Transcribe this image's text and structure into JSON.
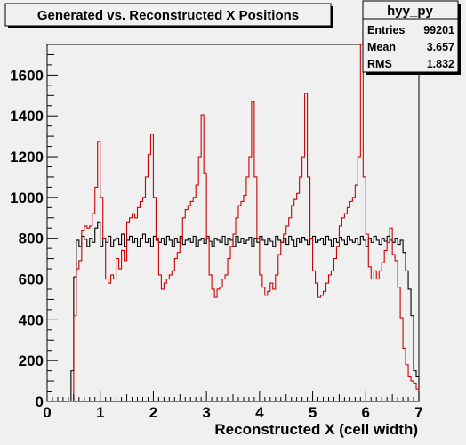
{
  "title": "Generated vs. Reconstructed X Positions",
  "stats": {
    "name": "hyy_py",
    "rows": [
      {
        "label": "Entries",
        "value": "99201"
      },
      {
        "label": "Mean",
        "value": "3.657"
      },
      {
        "label": "RMS",
        "value": "1.832"
      }
    ]
  },
  "colors": {
    "background": "#f0f0f0",
    "frame": "#000000",
    "series_reconstructed": "#000000",
    "series_generated": "#cc0000"
  },
  "chart_data": {
    "type": "histogram",
    "title": "Generated vs. Reconstructed X Positions",
    "xlabel": "Reconstructed X (cell width)",
    "ylabel": "",
    "xlim": [
      0,
      7
    ],
    "ylim": [
      0,
      1750
    ],
    "x_ticks": [
      0,
      1,
      2,
      3,
      4,
      5,
      6,
      7
    ],
    "y_ticks": [
      0,
      200,
      400,
      600,
      800,
      1000,
      1200,
      1400,
      1600
    ],
    "grid": false,
    "legend": "none",
    "series": [
      {
        "color": "black",
        "points": [
          [
            0.4,
            0
          ],
          [
            0.45,
            150
          ],
          [
            0.5,
            610
          ],
          [
            0.55,
            790
          ],
          [
            0.6,
            760
          ],
          [
            0.65,
            810
          ],
          [
            0.7,
            795
          ],
          [
            0.75,
            760
          ],
          [
            0.8,
            800
          ],
          [
            0.85,
            780
          ],
          [
            0.9,
            850
          ],
          [
            0.95,
            880
          ],
          [
            1.0,
            760
          ],
          [
            1.05,
            800
          ],
          [
            1.1,
            780
          ],
          [
            1.15,
            810
          ],
          [
            1.2,
            760
          ],
          [
            1.25,
            790
          ],
          [
            1.3,
            800
          ],
          [
            1.35,
            770
          ],
          [
            1.4,
            820
          ],
          [
            1.45,
            760
          ],
          [
            1.5,
            790
          ],
          [
            1.55,
            810
          ],
          [
            1.6,
            780
          ],
          [
            1.65,
            800
          ],
          [
            1.7,
            760
          ],
          [
            1.75,
            800
          ],
          [
            1.8,
            820
          ],
          [
            1.85,
            780
          ],
          [
            1.9,
            800
          ],
          [
            1.95,
            760
          ],
          [
            2.0,
            810
          ],
          [
            2.05,
            790
          ],
          [
            2.1,
            780
          ],
          [
            2.15,
            800
          ],
          [
            2.2,
            770
          ],
          [
            2.25,
            810
          ],
          [
            2.3,
            790
          ],
          [
            2.35,
            760
          ],
          [
            2.4,
            800
          ],
          [
            2.45,
            780
          ],
          [
            2.5,
            810
          ],
          [
            2.55,
            770
          ],
          [
            2.6,
            790
          ],
          [
            2.65,
            800
          ],
          [
            2.7,
            780
          ],
          [
            2.75,
            810
          ],
          [
            2.8,
            760
          ],
          [
            2.85,
            790
          ],
          [
            2.9,
            800
          ],
          [
            2.95,
            775
          ],
          [
            3.0,
            810
          ],
          [
            3.05,
            785
          ],
          [
            3.1,
            760
          ],
          [
            3.15,
            800
          ],
          [
            3.2,
            790
          ],
          [
            3.25,
            780
          ],
          [
            3.3,
            810
          ],
          [
            3.35,
            770
          ],
          [
            3.4,
            800
          ],
          [
            3.45,
            790
          ],
          [
            3.5,
            760
          ],
          [
            3.55,
            810
          ],
          [
            3.6,
            780
          ],
          [
            3.65,
            800
          ],
          [
            3.7,
            775
          ],
          [
            3.75,
            790
          ],
          [
            3.8,
            805
          ],
          [
            3.85,
            760
          ],
          [
            3.9,
            800
          ],
          [
            3.95,
            780
          ],
          [
            4.0,
            810
          ],
          [
            4.05,
            790
          ],
          [
            4.1,
            770
          ],
          [
            4.15,
            800
          ],
          [
            4.2,
            785
          ],
          [
            4.25,
            760
          ],
          [
            4.3,
            810
          ],
          [
            4.35,
            790
          ],
          [
            4.4,
            780
          ],
          [
            4.45,
            800
          ],
          [
            4.5,
            770
          ],
          [
            4.55,
            810
          ],
          [
            4.6,
            790
          ],
          [
            4.65,
            760
          ],
          [
            4.7,
            800
          ],
          [
            4.75,
            780
          ],
          [
            4.8,
            805
          ],
          [
            4.85,
            790
          ],
          [
            4.9,
            770
          ],
          [
            4.95,
            800
          ],
          [
            5.0,
            810
          ],
          [
            5.05,
            780
          ],
          [
            5.1,
            790
          ],
          [
            5.15,
            800
          ],
          [
            5.2,
            770
          ],
          [
            5.25,
            810
          ],
          [
            5.3,
            790
          ],
          [
            5.35,
            760
          ],
          [
            5.4,
            800
          ],
          [
            5.45,
            780
          ],
          [
            5.5,
            805
          ],
          [
            5.55,
            790
          ],
          [
            5.6,
            770
          ],
          [
            5.65,
            810
          ],
          [
            5.7,
            790
          ],
          [
            5.75,
            780
          ],
          [
            5.8,
            800
          ],
          [
            5.85,
            770
          ],
          [
            5.9,
            810
          ],
          [
            5.95,
            790
          ],
          [
            6.0,
            760
          ],
          [
            6.05,
            800
          ],
          [
            6.1,
            780
          ],
          [
            6.15,
            810
          ],
          [
            6.2,
            790
          ],
          [
            6.25,
            770
          ],
          [
            6.3,
            800
          ],
          [
            6.35,
            785
          ],
          [
            6.4,
            810
          ],
          [
            6.45,
            790
          ],
          [
            6.5,
            780
          ],
          [
            6.55,
            800
          ],
          [
            6.6,
            770
          ],
          [
            6.65,
            790
          ],
          [
            6.7,
            730
          ],
          [
            6.75,
            640
          ],
          [
            6.8,
            550
          ],
          [
            6.85,
            420
          ],
          [
            6.9,
            150
          ],
          [
            6.95,
            120
          ]
        ]
      },
      {
        "color": "red",
        "points": [
          [
            0.4,
            0
          ],
          [
            0.45,
            0
          ],
          [
            0.5,
            420
          ],
          [
            0.55,
            650
          ],
          [
            0.6,
            690
          ],
          [
            0.65,
            840
          ],
          [
            0.7,
            860
          ],
          [
            0.75,
            850
          ],
          [
            0.8,
            860
          ],
          [
            0.85,
            920
          ],
          [
            0.9,
            1050
          ],
          [
            0.95,
            1275
          ],
          [
            1.0,
            1000
          ],
          [
            1.05,
            800
          ],
          [
            1.1,
            600
          ],
          [
            1.15,
            580
          ],
          [
            1.2,
            620
          ],
          [
            1.25,
            600
          ],
          [
            1.3,
            700
          ],
          [
            1.35,
            650
          ],
          [
            1.4,
            740
          ],
          [
            1.45,
            690
          ],
          [
            1.5,
            880
          ],
          [
            1.55,
            900
          ],
          [
            1.6,
            920
          ],
          [
            1.65,
            900
          ],
          [
            1.7,
            950
          ],
          [
            1.75,
            980
          ],
          [
            1.8,
            1000
          ],
          [
            1.85,
            1100
          ],
          [
            1.9,
            1210
          ],
          [
            1.95,
            1310
          ],
          [
            2.0,
            1000
          ],
          [
            2.05,
            800
          ],
          [
            2.1,
            620
          ],
          [
            2.15,
            550
          ],
          [
            2.2,
            580
          ],
          [
            2.25,
            600
          ],
          [
            2.3,
            620
          ],
          [
            2.35,
            640
          ],
          [
            2.4,
            700
          ],
          [
            2.45,
            730
          ],
          [
            2.5,
            800
          ],
          [
            2.55,
            900
          ],
          [
            2.6,
            940
          ],
          [
            2.65,
            960
          ],
          [
            2.7,
            980
          ],
          [
            2.75,
            1000
          ],
          [
            2.8,
            1060
          ],
          [
            2.85,
            1200
          ],
          [
            2.9,
            1405
          ],
          [
            2.95,
            1120
          ],
          [
            3.0,
            800
          ],
          [
            3.05,
            620
          ],
          [
            3.1,
            550
          ],
          [
            3.15,
            510
          ],
          [
            3.2,
            550
          ],
          [
            3.25,
            560
          ],
          [
            3.3,
            600
          ],
          [
            3.35,
            620
          ],
          [
            3.4,
            700
          ],
          [
            3.45,
            760
          ],
          [
            3.5,
            820
          ],
          [
            3.55,
            900
          ],
          [
            3.6,
            960
          ],
          [
            3.65,
            980
          ],
          [
            3.7,
            1010
          ],
          [
            3.75,
            1100
          ],
          [
            3.8,
            1200
          ],
          [
            3.85,
            1470
          ],
          [
            3.9,
            1100
          ],
          [
            3.95,
            800
          ],
          [
            4.0,
            620
          ],
          [
            4.05,
            560
          ],
          [
            4.1,
            520
          ],
          [
            4.15,
            540
          ],
          [
            4.2,
            580
          ],
          [
            4.25,
            550
          ],
          [
            4.3,
            620
          ],
          [
            4.35,
            720
          ],
          [
            4.4,
            780
          ],
          [
            4.45,
            820
          ],
          [
            4.5,
            860
          ],
          [
            4.55,
            900
          ],
          [
            4.6,
            960
          ],
          [
            4.65,
            990
          ],
          [
            4.7,
            1020
          ],
          [
            4.75,
            1100
          ],
          [
            4.8,
            1200
          ],
          [
            4.85,
            1510
          ],
          [
            4.9,
            1100
          ],
          [
            4.95,
            800
          ],
          [
            5.0,
            640
          ],
          [
            5.05,
            580
          ],
          [
            5.1,
            510
          ],
          [
            5.15,
            520
          ],
          [
            5.2,
            540
          ],
          [
            5.25,
            580
          ],
          [
            5.3,
            620
          ],
          [
            5.35,
            640
          ],
          [
            5.4,
            700
          ],
          [
            5.45,
            760
          ],
          [
            5.5,
            860
          ],
          [
            5.55,
            900
          ],
          [
            5.6,
            920
          ],
          [
            5.65,
            950
          ],
          [
            5.7,
            980
          ],
          [
            5.75,
            1000
          ],
          [
            5.8,
            1060
          ],
          [
            5.85,
            1200
          ],
          [
            5.9,
            1750
          ],
          [
            5.95,
            1100
          ],
          [
            6.0,
            820
          ],
          [
            6.05,
            660
          ],
          [
            6.1,
            600
          ],
          [
            6.15,
            640
          ],
          [
            6.2,
            600
          ],
          [
            6.25,
            640
          ],
          [
            6.3,
            680
          ],
          [
            6.35,
            740
          ],
          [
            6.4,
            780
          ],
          [
            6.45,
            850
          ],
          [
            6.5,
            720
          ],
          [
            6.55,
            690
          ],
          [
            6.6,
            560
          ],
          [
            6.65,
            410
          ],
          [
            6.7,
            260
          ],
          [
            6.75,
            180
          ],
          [
            6.8,
            120
          ],
          [
            6.85,
            100
          ],
          [
            6.9,
            90
          ],
          [
            6.95,
            60
          ]
        ]
      }
    ]
  }
}
